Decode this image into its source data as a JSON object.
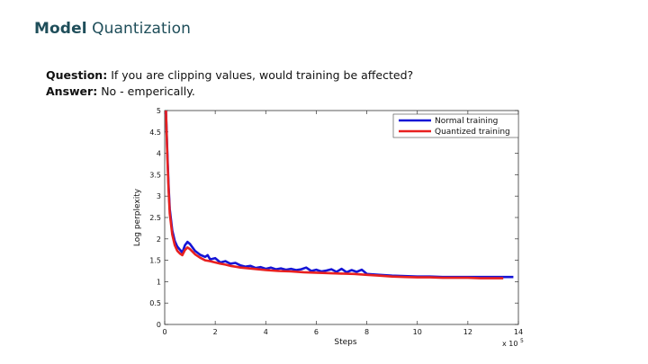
{
  "slide": {
    "title_bold": "Model",
    "title_rest": "Quantization",
    "question_label": "Question:",
    "question_text": "If you are clipping values, would training be affected?",
    "answer_label": "Answer:",
    "answer_text": "No - emperically."
  },
  "chart_data": {
    "type": "line",
    "title": "",
    "xlabel": "Steps",
    "ylabel": "Log perplexity",
    "x_multiplier_label": "x 10",
    "x_multiplier_exp": "5",
    "xlim": [
      0,
      14
    ],
    "ylim": [
      0,
      5
    ],
    "xticks": [
      "0",
      "2",
      "4",
      "6",
      "8",
      "10",
      "12",
      "14"
    ],
    "yticks": [
      "0",
      "0.5",
      "1",
      "1.5",
      "2",
      "2.5",
      "3",
      "3.5",
      "4",
      "4.5",
      "5"
    ],
    "legend_position": "top-right",
    "grid": false,
    "series": [
      {
        "name": "Normal training",
        "color": "#1515d6",
        "x": [
          0.05,
          0.1,
          0.15,
          0.2,
          0.3,
          0.4,
          0.5,
          0.6,
          0.7,
          0.8,
          0.9,
          1.0,
          1.2,
          1.4,
          1.6,
          1.7,
          1.8,
          2.0,
          2.2,
          2.4,
          2.6,
          2.8,
          3.0,
          3.2,
          3.4,
          3.6,
          3.8,
          4.0,
          4.2,
          4.4,
          4.6,
          4.8,
          5.0,
          5.2,
          5.4,
          5.6,
          5.8,
          6.0,
          6.2,
          6.4,
          6.6,
          6.8,
          7.0,
          7.2,
          7.4,
          7.6,
          7.8,
          8.0,
          8.5,
          9.0,
          9.5,
          10.0,
          10.5,
          11.0,
          11.5,
          12.0,
          12.5,
          13.0,
          13.5,
          13.8
        ],
        "y": [
          5.0,
          4.1,
          3.3,
          2.7,
          2.2,
          1.95,
          1.82,
          1.75,
          1.68,
          1.85,
          1.93,
          1.88,
          1.72,
          1.63,
          1.58,
          1.62,
          1.52,
          1.55,
          1.45,
          1.48,
          1.42,
          1.44,
          1.38,
          1.35,
          1.37,
          1.32,
          1.34,
          1.3,
          1.33,
          1.29,
          1.31,
          1.28,
          1.3,
          1.27,
          1.29,
          1.33,
          1.25,
          1.28,
          1.24,
          1.26,
          1.29,
          1.23,
          1.3,
          1.22,
          1.27,
          1.23,
          1.28,
          1.18,
          1.16,
          1.14,
          1.13,
          1.12,
          1.12,
          1.11,
          1.11,
          1.11,
          1.11,
          1.11,
          1.11,
          1.11
        ]
      },
      {
        "name": "Quantized training",
        "color": "#e8201f",
        "x": [
          0.05,
          0.1,
          0.15,
          0.2,
          0.3,
          0.4,
          0.5,
          0.6,
          0.7,
          0.8,
          0.9,
          1.0,
          1.2,
          1.4,
          1.6,
          1.8,
          2.0,
          2.2,
          2.4,
          2.6,
          2.8,
          3.0,
          3.5,
          4.0,
          4.5,
          5.0,
          5.5,
          6.0,
          6.5,
          7.0,
          7.5,
          8.0,
          8.5,
          9.0,
          9.5,
          10.0,
          10.5,
          11.0,
          11.5,
          12.0,
          12.5,
          13.0,
          13.4
        ],
        "y": [
          5.0,
          4.0,
          3.2,
          2.6,
          2.1,
          1.85,
          1.72,
          1.66,
          1.62,
          1.74,
          1.8,
          1.76,
          1.64,
          1.56,
          1.5,
          1.48,
          1.45,
          1.42,
          1.4,
          1.37,
          1.35,
          1.33,
          1.3,
          1.27,
          1.25,
          1.24,
          1.22,
          1.21,
          1.2,
          1.19,
          1.18,
          1.16,
          1.14,
          1.12,
          1.11,
          1.1,
          1.1,
          1.09,
          1.09,
          1.09,
          1.08,
          1.08,
          1.08
        ]
      }
    ]
  }
}
